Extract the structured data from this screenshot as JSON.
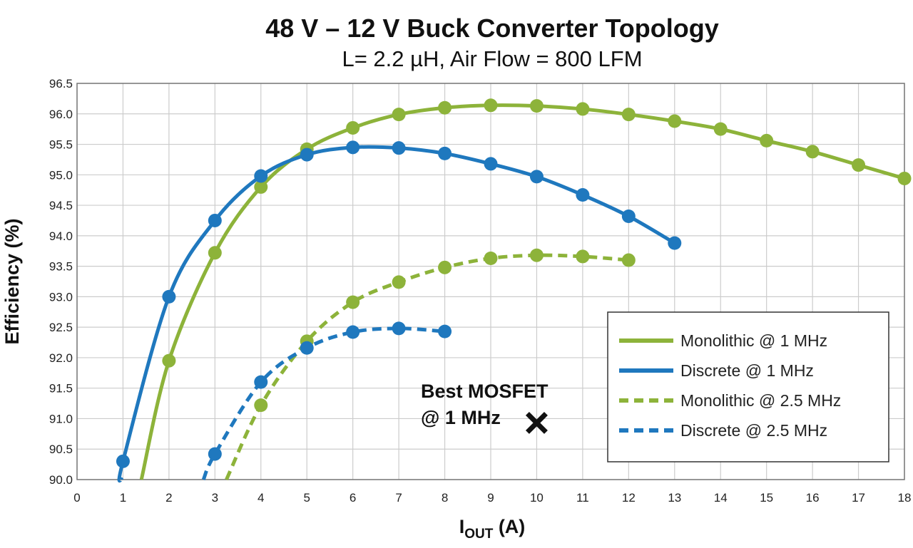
{
  "chart_data": {
    "type": "line",
    "title": "48 V – 12 V Buck Converter Topology",
    "subtitle": "L= 2.2 µH, Air Flow = 800 LFM",
    "xlabel_main": "I",
    "xlabel_sub": "OUT",
    "xlabel_unit": " (A)",
    "ylabel": "Efficiency (%)",
    "xlim": [
      0,
      18
    ],
    "ylim": [
      90.0,
      96.5
    ],
    "xticks": [
      "0",
      "1",
      "2",
      "3",
      "4",
      "5",
      "6",
      "7",
      "8",
      "9",
      "10",
      "11",
      "12",
      "13",
      "14",
      "15",
      "16",
      "17",
      "18"
    ],
    "yticks": [
      "90.0",
      "90.5",
      "91.0",
      "91.5",
      "92.0",
      "92.5",
      "93.0",
      "93.5",
      "94.0",
      "94.5",
      "95.0",
      "95.5",
      "96.0",
      "96.5"
    ],
    "grid": true,
    "legend_position": "bottom-right",
    "series": [
      {
        "name": "Monolithic @ 1 MHz",
        "color": "#8db33a",
        "dash": false,
        "x": [
          2,
          3,
          4,
          5,
          6,
          7,
          8,
          9,
          10,
          11,
          12,
          13,
          14,
          15,
          16,
          17,
          18
        ],
        "y": [
          91.95,
          93.72,
          94.8,
          95.42,
          95.77,
          95.99,
          96.1,
          96.14,
          96.13,
          96.08,
          95.99,
          95.88,
          95.75,
          95.56,
          95.38,
          95.16,
          94.94
        ],
        "curve_start": [
          1.4,
          90.0
        ]
      },
      {
        "name": "Discrete @ 1 MHz",
        "color": "#1f78be",
        "dash": false,
        "x": [
          1,
          2,
          3,
          4,
          5,
          6,
          7,
          8,
          9,
          10,
          11,
          12,
          13
        ],
        "y": [
          90.3,
          93.0,
          94.25,
          94.98,
          95.33,
          95.45,
          95.44,
          95.35,
          95.18,
          94.97,
          94.67,
          94.32,
          93.88
        ],
        "curve_start": [
          0.97,
          90.0
        ]
      },
      {
        "name": "Monolithic @ 2.5 MHz",
        "color": "#8db33a",
        "dash": true,
        "x": [
          4,
          5,
          6,
          7,
          8,
          9,
          10,
          11,
          12
        ],
        "y": [
          91.22,
          92.27,
          92.91,
          93.24,
          93.48,
          93.63,
          93.68,
          93.66,
          93.6
        ],
        "curve_start": [
          3.25,
          90.0
        ]
      },
      {
        "name": "Discrete @ 2.5 MHz",
        "color": "#1f78be",
        "dash": true,
        "x": [
          3,
          4,
          5,
          6,
          7,
          8
        ],
        "y": [
          90.42,
          91.6,
          92.16,
          92.42,
          92.48,
          92.43
        ],
        "curve_start": [
          2.75,
          90.0
        ]
      }
    ],
    "annotation": {
      "line1": "Best MOSFET",
      "line2": "@ 1 MHz",
      "x": 10,
      "y": 91.0,
      "marker": "x-mark-icon"
    }
  }
}
